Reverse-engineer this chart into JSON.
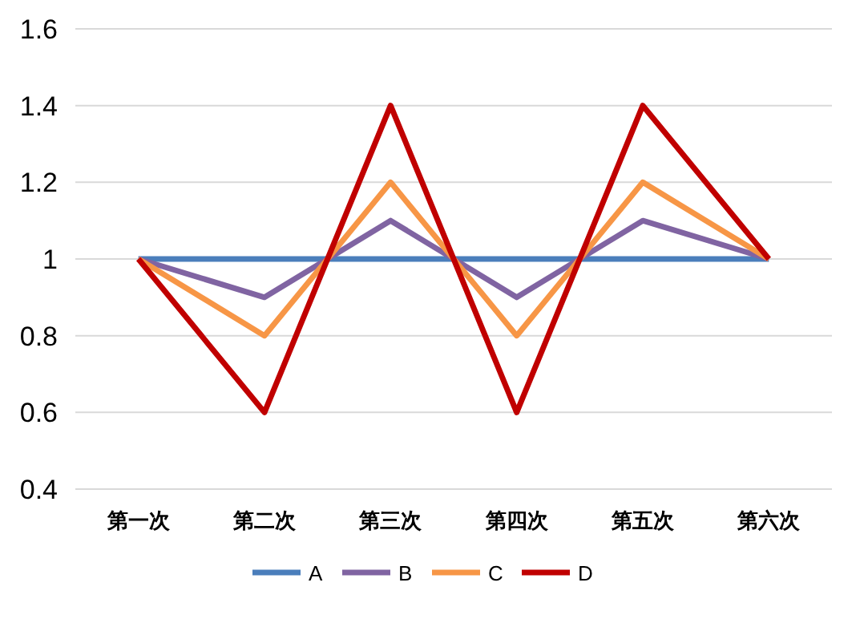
{
  "chart_data": {
    "type": "line",
    "categories": [
      "第一次",
      "第二次",
      "第三次",
      "第四次",
      "第五次",
      "第六次"
    ],
    "series": [
      {
        "name": "A",
        "color": "#4a7ebb",
        "values": [
          1,
          1,
          1,
          1,
          1,
          1
        ]
      },
      {
        "name": "B",
        "color": "#8064a2",
        "values": [
          1,
          0.9,
          1.1,
          0.9,
          1.1,
          1
        ]
      },
      {
        "name": "C",
        "color": "#f79646",
        "values": [
          1,
          0.8,
          1.2,
          0.8,
          1.2,
          1
        ]
      },
      {
        "name": "D",
        "color": "#c00000",
        "values": [
          1,
          0.6,
          1.4,
          0.6,
          1.4,
          1
        ]
      }
    ],
    "ylim": [
      0.4,
      1.6
    ],
    "yticks": [
      0.4,
      0.6,
      0.8,
      1,
      1.2,
      1.4,
      1.6
    ],
    "grid": "y",
    "legend": "bottom",
    "marker": "none",
    "line_style": "solid"
  }
}
